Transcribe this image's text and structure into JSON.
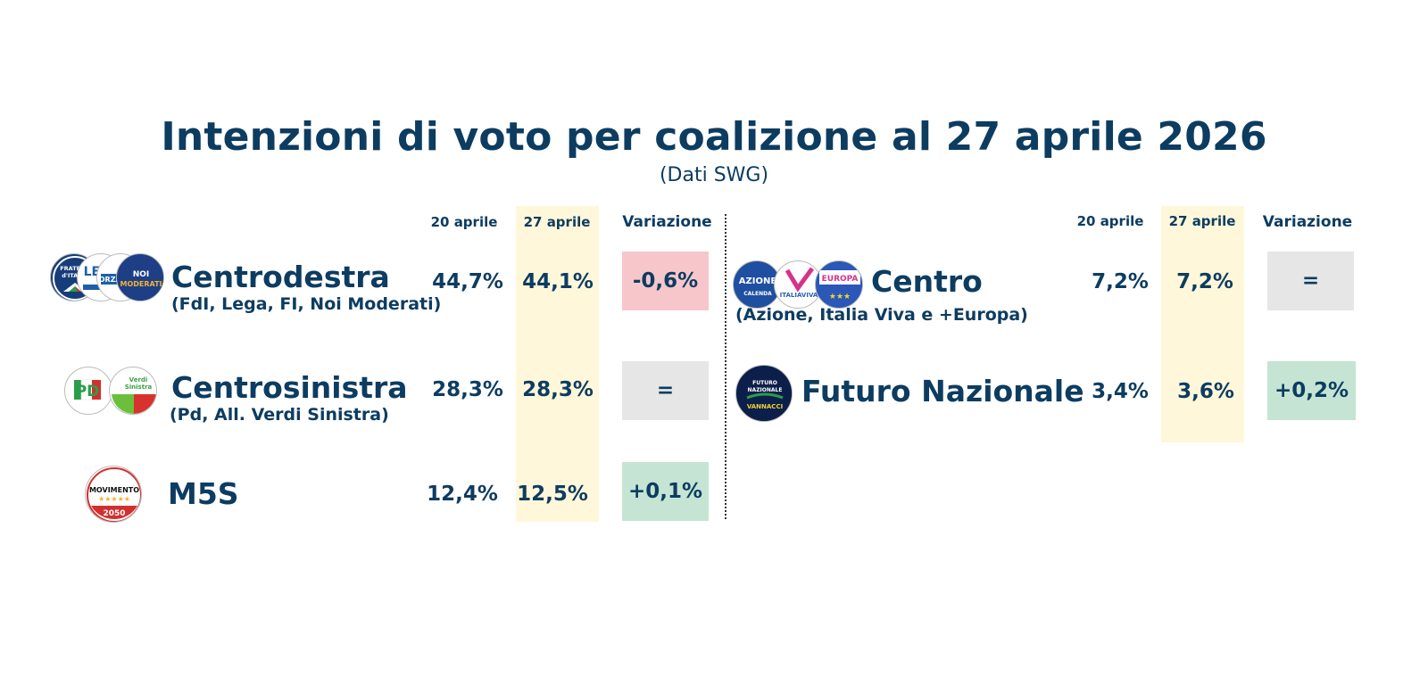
{
  "title": "Intenzioni di voto per coalizione al 27 aprile 2026",
  "subtitle": "(Dati SWG)",
  "headers": {
    "prev": "20 aprile",
    "curr": "27 aprile",
    "var": "Variazione"
  },
  "colors": {
    "text": "#0d3c61",
    "highlight_column": "#fef7d9",
    "negative": "#f7c6cb",
    "neutral": "#e6e6e6",
    "positive": "#c5e4d3"
  },
  "chart_data": {
    "type": "table",
    "columns": [
      "20 aprile",
      "27 aprile",
      "Variazione"
    ],
    "rows": [
      {
        "name": "Centrodestra",
        "desc": "(FdI, Lega, FI, Noi Moderati)",
        "prev": "44,7%",
        "curr": "44,1%",
        "var": "-0,6%",
        "trend": "negative",
        "prev_value": 44.7,
        "curr_value": 44.1
      },
      {
        "name": "Centrosinistra",
        "desc": "(Pd, All. Verdi Sinistra)",
        "prev": "28,3%",
        "curr": "28,3%",
        "var": "=",
        "trend": "neutral",
        "prev_value": 28.3,
        "curr_value": 28.3
      },
      {
        "name": "M5S",
        "desc": "",
        "prev": "12,4%",
        "curr": "12,5%",
        "var": "+0,1%",
        "trend": "positive",
        "prev_value": 12.4,
        "curr_value": 12.5
      },
      {
        "name": "Centro",
        "desc": "(Azione, Italia Viva e +Europa)",
        "prev": "7,2%",
        "curr": "7,2%",
        "var": "=",
        "trend": "neutral",
        "prev_value": 7.2,
        "curr_value": 7.2
      },
      {
        "name": "Futuro Nazionale",
        "desc": "",
        "prev": "3,4%",
        "curr": "3,6%",
        "var": "+0,2%",
        "trend": "positive",
        "prev_value": 3.4,
        "curr_value": 3.6
      }
    ]
  },
  "logos": {
    "fdi": "FRATELLI D'ITALIA",
    "pd": "PD",
    "avs": "Alleanza Verdi Sinistra",
    "m5s_top": "MOVIMENTO",
    "m5s_bottom": "2050",
    "azione": "AZIONE",
    "azione_sub": "CALENDA",
    "iv": "ITALIAVIVA",
    "europa": "EUROPA",
    "fn_top": "FUTURO NAZIONALE",
    "fn_bottom": "VANNACCI"
  }
}
